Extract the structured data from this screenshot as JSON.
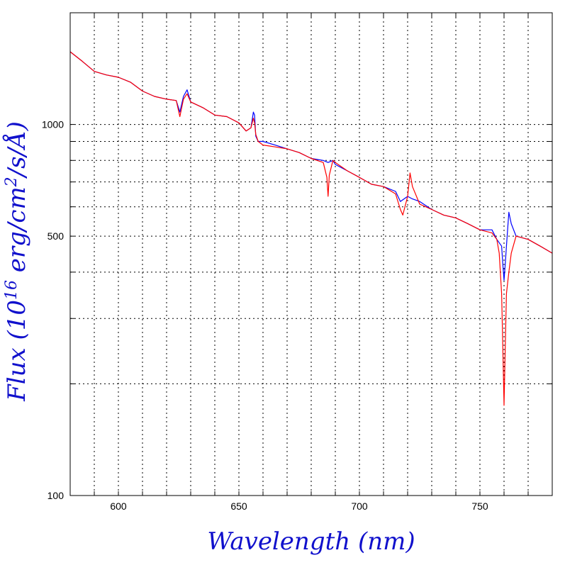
{
  "chart_data": {
    "type": "line",
    "title": "",
    "xlabel": "Wavelength (nm)",
    "ylabel_parts": {
      "prefix": "Flux (10",
      "exp1": "16",
      "middle": " erg/cm",
      "exp2": "2",
      "suffix": "/s/Å)"
    },
    "xlim": [
      580,
      780
    ],
    "ylim": [
      100,
      2000
    ],
    "yscale": "log",
    "x_ticks": [
      {
        "value": 600,
        "label": "600"
      },
      {
        "value": 650,
        "label": "650"
      },
      {
        "value": 700,
        "label": "700"
      },
      {
        "value": 750,
        "label": "750"
      }
    ],
    "y_ticks": [
      {
        "value": 100,
        "label": "100"
      },
      {
        "value": 500,
        "label": "500"
      },
      {
        "value": 1000,
        "label": "1000"
      }
    ],
    "grid": true,
    "x_grid": [
      590,
      600,
      610,
      620,
      630,
      640,
      650,
      660,
      670,
      680,
      690,
      700,
      710,
      720,
      730,
      740,
      750,
      760,
      770
    ],
    "y_grid": [
      200,
      300,
      400,
      500,
      600,
      700,
      800,
      900,
      1000
    ],
    "series": [
      {
        "color": "#0000ff",
        "x": [
          580,
          585,
          590,
          595,
          600,
          605,
          610,
          615,
          620,
          624,
          625.5,
          627,
          628.5,
          630,
          635,
          640,
          645,
          650,
          653,
          655,
          656,
          656.5,
          657,
          658,
          660,
          665,
          670,
          675,
          680,
          685,
          687,
          689,
          690,
          695,
          700,
          705,
          710,
          715,
          717,
          720,
          722,
          725,
          730,
          735,
          740,
          745,
          750,
          755,
          757,
          759,
          759.5,
          760,
          760.5,
          761,
          762,
          763,
          765,
          770,
          775,
          780
        ],
        "y": [
          1570,
          1480,
          1390,
          1360,
          1340,
          1300,
          1230,
          1190,
          1170,
          1160,
          1080,
          1190,
          1240,
          1150,
          1110,
          1060,
          1050,
          1010,
          960,
          980,
          1080,
          1060,
          930,
          900,
          900,
          880,
          860,
          840,
          810,
          800,
          790,
          800,
          780,
          750,
          720,
          690,
          680,
          660,
          620,
          640,
          630,
          620,
          590,
          570,
          560,
          540,
          520,
          520,
          490,
          470,
          420,
          380,
          420,
          470,
          580,
          540,
          500,
          490,
          470,
          450
        ]
      },
      {
        "color": "#ff0000",
        "x": [
          580,
          585,
          590,
          595,
          600,
          605,
          610,
          615,
          620,
          624,
          625.5,
          627,
          628.5,
          630,
          635,
          640,
          645,
          650,
          653,
          655,
          656,
          656.5,
          657,
          658,
          660,
          665,
          670,
          675,
          680,
          685,
          686.5,
          687,
          687.5,
          689,
          690,
          695,
          700,
          705,
          710,
          715,
          717,
          718,
          720,
          721,
          722,
          725,
          730,
          735,
          740,
          745,
          750,
          755,
          757,
          758,
          759,
          759.5,
          760,
          760.5,
          761,
          762,
          763,
          765,
          770,
          775,
          780
        ],
        "y": [
          1570,
          1480,
          1390,
          1360,
          1340,
          1300,
          1230,
          1190,
          1170,
          1160,
          1050,
          1170,
          1210,
          1150,
          1110,
          1060,
          1050,
          1010,
          960,
          980,
          1040,
          1010,
          940,
          900,
          880,
          870,
          860,
          840,
          810,
          790,
          720,
          640,
          730,
          800,
          790,
          750,
          720,
          690,
          680,
          650,
          590,
          570,
          640,
          740,
          680,
          610,
          590,
          570,
          560,
          540,
          520,
          510,
          490,
          450,
          350,
          250,
          175,
          250,
          350,
          400,
          450,
          500,
          490,
          470,
          450
        ]
      }
    ]
  },
  "colors": {
    "axis_title": "#1010cc",
    "axis": "#000000",
    "grid": "#000000"
  }
}
